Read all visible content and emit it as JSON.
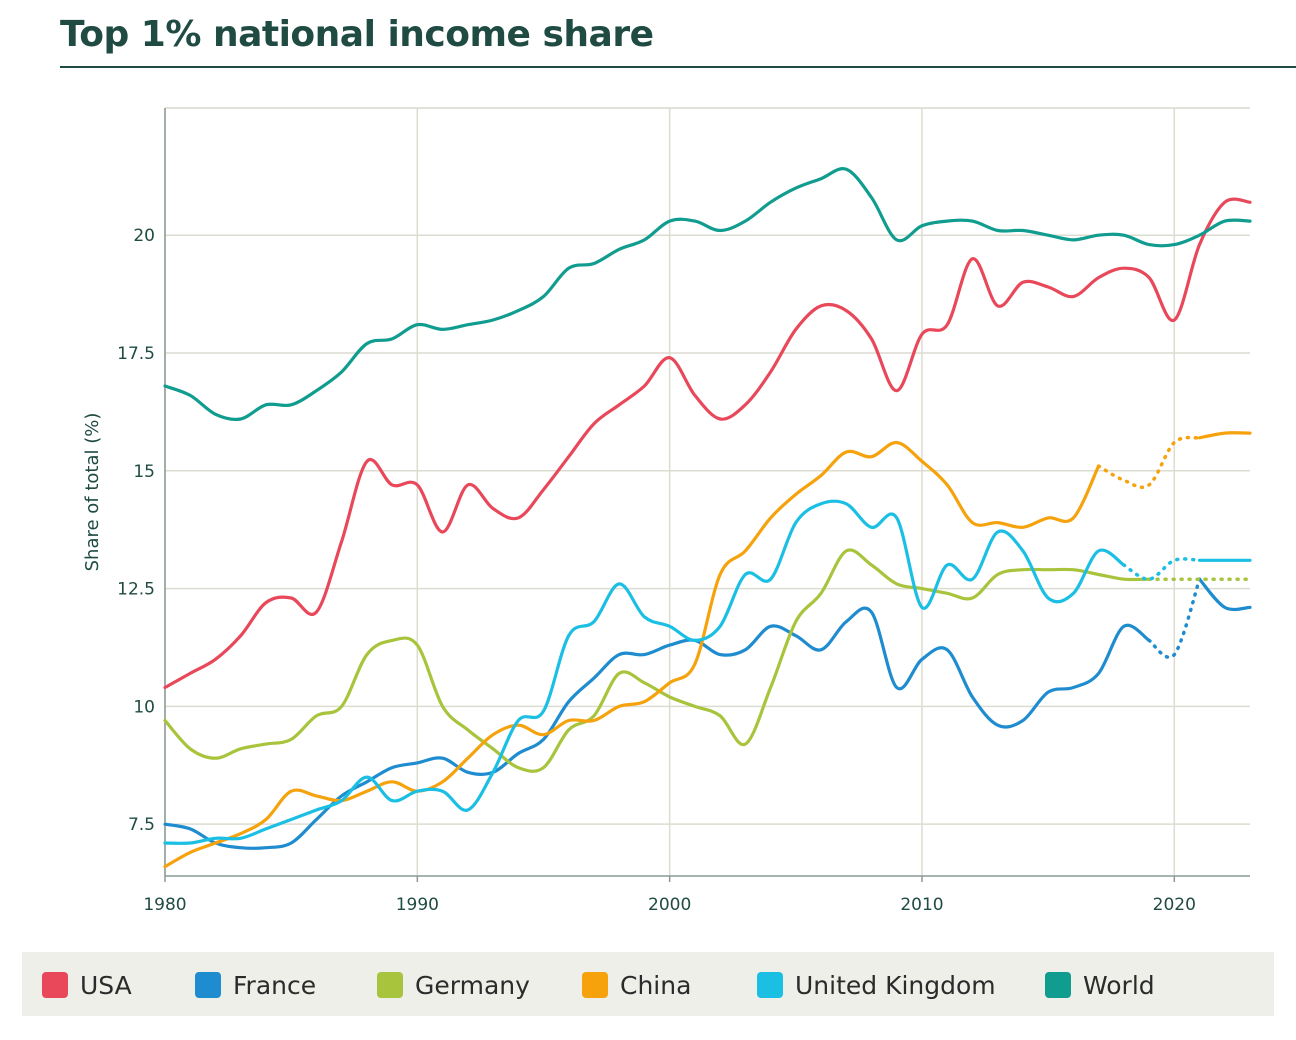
{
  "chart_data": {
    "type": "line",
    "title": "Top 1% national income share",
    "xlabel": "",
    "ylabel": "Share of total (%)",
    "xlim": [
      1980,
      2023
    ],
    "ylim": [
      6.4,
      22.7
    ],
    "x_ticks": [
      1980,
      1990,
      2000,
      2010,
      2020
    ],
    "y_ticks": [
      7.5,
      10,
      12.5,
      15,
      17.5,
      20
    ],
    "y_tick_labels": [
      "7.5",
      "10",
      "12.5",
      "15",
      "17.5",
      "20"
    ],
    "grid": true,
    "legend_position": "bottom",
    "series": [
      {
        "name": "USA",
        "color": "#e8485a",
        "x": [
          1980,
          1981,
          1982,
          1983,
          1984,
          1985,
          1986,
          1987,
          1988,
          1989,
          1990,
          1991,
          1992,
          1993,
          1994,
          1995,
          1996,
          1997,
          1998,
          1999,
          2000,
          2001,
          2002,
          2003,
          2004,
          2005,
          2006,
          2007,
          2008,
          2009,
          2010,
          2011,
          2012,
          2013,
          2014,
          2015,
          2016,
          2017,
          2018,
          2019,
          2020,
          2021,
          2022,
          2023
        ],
        "values": [
          10.4,
          10.7,
          11.0,
          11.5,
          12.2,
          12.3,
          12.0,
          13.5,
          15.2,
          14.7,
          14.7,
          13.7,
          14.7,
          14.2,
          14.0,
          14.6,
          15.3,
          16.0,
          16.4,
          16.8,
          17.4,
          16.6,
          16.1,
          16.4,
          17.1,
          18.0,
          18.5,
          18.4,
          17.8,
          16.7,
          17.9,
          18.1,
          19.5,
          18.5,
          19.0,
          18.9,
          18.7,
          19.1,
          19.3,
          19.1,
          18.2,
          19.8,
          20.7,
          20.7
        ],
        "dotted_x": []
      },
      {
        "name": "France",
        "color": "#1f8cd0",
        "x": [
          1980,
          1981,
          1982,
          1983,
          1984,
          1985,
          1986,
          1987,
          1988,
          1989,
          1990,
          1991,
          1992,
          1993,
          1994,
          1995,
          1996,
          1997,
          1998,
          1999,
          2000,
          2001,
          2002,
          2003,
          2004,
          2005,
          2006,
          2007,
          2008,
          2009,
          2010,
          2011,
          2012,
          2013,
          2014,
          2015,
          2016,
          2017,
          2018,
          2019,
          2020,
          2021,
          2022,
          2023
        ],
        "values": [
          7.5,
          7.4,
          7.1,
          7.0,
          7.0,
          7.1,
          7.6,
          8.1,
          8.4,
          8.7,
          8.8,
          8.9,
          8.6,
          8.6,
          9.0,
          9.3,
          10.1,
          10.6,
          11.1,
          11.1,
          11.3,
          11.4,
          11.1,
          11.2,
          11.7,
          11.5,
          11.2,
          11.8,
          12.0,
          10.4,
          11.0,
          11.2,
          10.2,
          9.6,
          9.7,
          10.3,
          10.4,
          10.7,
          11.7,
          11.4,
          11.1,
          12.7,
          12.1,
          12.1
        ],
        "dotted_x": [
          2019,
          2020,
          2021
        ]
      },
      {
        "name": "Germany",
        "color": "#a8c43c",
        "x": [
          1980,
          1981,
          1982,
          1983,
          1984,
          1985,
          1986,
          1987,
          1988,
          1989,
          1990,
          1991,
          1992,
          1993,
          1994,
          1995,
          1996,
          1997,
          1998,
          1999,
          2000,
          2001,
          2002,
          2003,
          2004,
          2005,
          2006,
          2007,
          2008,
          2009,
          2010,
          2011,
          2012,
          2013,
          2014,
          2015,
          2016,
          2017,
          2018,
          2019,
          2020,
          2021,
          2022,
          2023
        ],
        "values": [
          9.7,
          9.1,
          8.9,
          9.1,
          9.2,
          9.3,
          9.8,
          10.0,
          11.1,
          11.4,
          11.3,
          10.0,
          9.5,
          9.1,
          8.7,
          8.7,
          9.5,
          9.8,
          10.7,
          10.5,
          10.2,
          10.0,
          9.8,
          9.2,
          10.4,
          11.8,
          12.4,
          13.3,
          13.0,
          12.6,
          12.5,
          12.4,
          12.3,
          12.8,
          12.9,
          12.9,
          12.9,
          12.8,
          12.7,
          12.7,
          12.7,
          12.7,
          12.7,
          12.7
        ],
        "dotted_x": [
          2019,
          2020,
          2021,
          2022,
          2023
        ]
      },
      {
        "name": "China",
        "color": "#f5a20c",
        "x": [
          1980,
          1981,
          1982,
          1983,
          1984,
          1985,
          1986,
          1987,
          1988,
          1989,
          1990,
          1991,
          1992,
          1993,
          1994,
          1995,
          1996,
          1997,
          1998,
          1999,
          2000,
          2001,
          2002,
          2003,
          2004,
          2005,
          2006,
          2007,
          2008,
          2009,
          2010,
          2011,
          2012,
          2013,
          2014,
          2015,
          2016,
          2017,
          2018,
          2019,
          2020,
          2021,
          2022,
          2023
        ],
        "values": [
          6.6,
          6.9,
          7.1,
          7.3,
          7.6,
          8.2,
          8.1,
          8.0,
          8.2,
          8.4,
          8.2,
          8.4,
          8.9,
          9.4,
          9.6,
          9.4,
          9.7,
          9.7,
          10.0,
          10.1,
          10.5,
          10.9,
          12.8,
          13.3,
          14.0,
          14.5,
          14.9,
          15.4,
          15.3,
          15.6,
          15.2,
          14.7,
          13.9,
          13.9,
          13.8,
          14.0,
          14.0,
          15.1,
          14.8,
          14.7,
          15.6,
          15.7,
          15.8,
          15.8
        ],
        "dotted_x": [
          2017,
          2018,
          2019,
          2020,
          2021
        ]
      },
      {
        "name": "United Kingdom",
        "color": "#1cbfe4",
        "x": [
          1980,
          1981,
          1982,
          1983,
          1984,
          1985,
          1986,
          1987,
          1988,
          1989,
          1990,
          1991,
          1992,
          1993,
          1994,
          1995,
          1996,
          1997,
          1998,
          1999,
          2000,
          2001,
          2002,
          2003,
          2004,
          2005,
          2006,
          2007,
          2008,
          2009,
          2010,
          2011,
          2012,
          2013,
          2014,
          2015,
          2016,
          2017,
          2018,
          2019,
          2020,
          2021,
          2022,
          2023
        ],
        "values": [
          7.1,
          7.1,
          7.2,
          7.2,
          7.4,
          7.6,
          7.8,
          8.0,
          8.5,
          8.0,
          8.2,
          8.2,
          7.8,
          8.6,
          9.7,
          9.9,
          11.5,
          11.8,
          12.6,
          11.9,
          11.7,
          11.4,
          11.7,
          12.8,
          12.7,
          13.9,
          14.3,
          14.3,
          13.8,
          14.0,
          12.1,
          13.0,
          12.7,
          13.7,
          13.3,
          12.3,
          12.4,
          13.3,
          13.0,
          12.7,
          13.1,
          13.1,
          13.1,
          13.1
        ],
        "dotted_x": [
          2018,
          2019,
          2020,
          2021
        ]
      },
      {
        "name": "World",
        "color": "#109c8e",
        "x": [
          1980,
          1981,
          1982,
          1983,
          1984,
          1985,
          1986,
          1987,
          1988,
          1989,
          1990,
          1991,
          1992,
          1993,
          1994,
          1995,
          1996,
          1997,
          1998,
          1999,
          2000,
          2001,
          2002,
          2003,
          2004,
          2005,
          2006,
          2007,
          2008,
          2009,
          2010,
          2011,
          2012,
          2013,
          2014,
          2015,
          2016,
          2017,
          2018,
          2019,
          2020,
          2021,
          2022,
          2023
        ],
        "values": [
          16.8,
          16.6,
          16.2,
          16.1,
          16.4,
          16.4,
          16.7,
          17.1,
          17.7,
          17.8,
          18.1,
          18.0,
          18.1,
          18.2,
          18.4,
          18.7,
          19.3,
          19.4,
          19.7,
          19.9,
          20.3,
          20.3,
          20.1,
          20.3,
          20.7,
          21.0,
          21.2,
          21.4,
          20.8,
          19.9,
          20.2,
          20.3,
          20.3,
          20.1,
          20.1,
          20.0,
          19.9,
          20.0,
          20.0,
          19.8,
          19.8,
          20.0,
          20.3,
          20.3
        ],
        "dotted_x": []
      }
    ]
  }
}
